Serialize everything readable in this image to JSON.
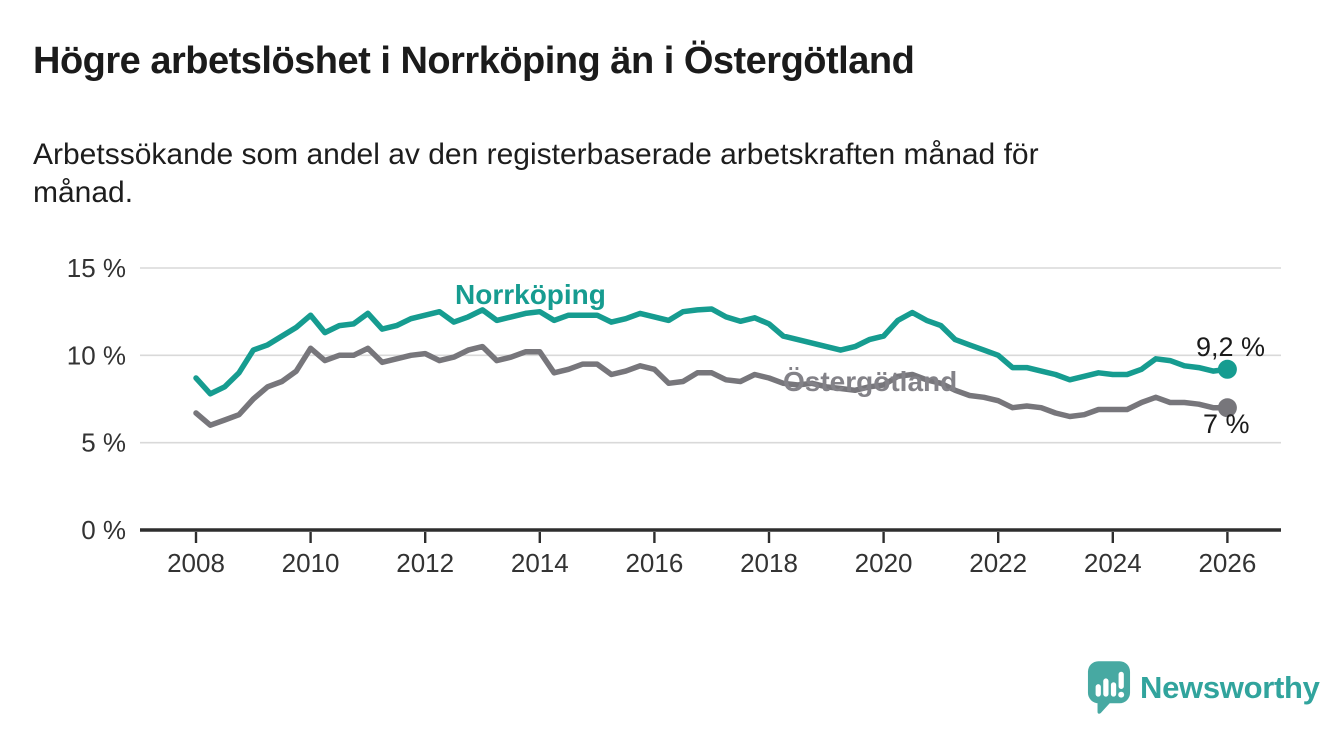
{
  "header": {
    "title": "Högre arbetslöshet i Norrköping än i Östergötland",
    "subtitle": "Arbetssökande som andel av den registerbaserade arbetskraften månad för månad.",
    "subtitle_lines": [
      "Arbetssökande som andel av den registerbaserade arbetskraften månad för",
      "månad."
    ]
  },
  "chart_data": {
    "type": "line",
    "title": "",
    "xlabel": "",
    "ylabel": "",
    "y_unit": "%",
    "ylim": [
      0,
      15
    ],
    "grid": true,
    "legend_position": "inline-labels",
    "y_ticks": [
      {
        "label": "0 %",
        "value": 0
      },
      {
        "label": "5 %",
        "value": 5
      },
      {
        "label": "10 %",
        "value": 10
      },
      {
        "label": "15 %",
        "value": 15
      }
    ],
    "x_ticks": [
      2008,
      2010,
      2012,
      2014,
      2016,
      2018,
      2020,
      2022,
      2024,
      2026
    ],
    "x_start": 2008.0,
    "x_step": 0.25,
    "x_end": 2026.0,
    "series": [
      {
        "name": "Norrköping",
        "color": "#169c90",
        "label_color": "#169c90",
        "end_label": "9,2 %",
        "end_value": 9.2,
        "values": [
          8.7,
          7.8,
          8.2,
          9.0,
          10.3,
          10.6,
          11.1,
          11.6,
          12.3,
          11.3,
          11.7,
          11.8,
          12.4,
          11.5,
          11.7,
          12.1,
          12.3,
          12.5,
          11.9,
          12.2,
          12.6,
          12.0,
          12.2,
          12.4,
          12.5,
          12.0,
          12.3,
          12.3,
          12.3,
          11.9,
          12.1,
          12.4,
          12.2,
          12.0,
          12.5,
          12.6,
          12.65,
          12.2,
          11.95,
          12.15,
          11.8,
          11.1,
          10.9,
          10.7,
          10.5,
          10.3,
          10.5,
          10.9,
          11.1,
          12.0,
          12.45,
          12.0,
          11.7,
          10.9,
          10.6,
          10.3,
          10.0,
          9.3,
          9.3,
          9.1,
          8.9,
          8.6,
          8.8,
          9.0,
          8.9,
          8.9,
          9.2,
          9.8,
          9.7,
          9.4,
          9.3,
          9.1,
          9.2
        ]
      },
      {
        "name": "Östergötland",
        "color": "#77767b",
        "label_color": "#838288",
        "end_label": "7 %",
        "end_value": 7.0,
        "values": [
          6.7,
          6.0,
          6.3,
          6.6,
          7.5,
          8.2,
          8.5,
          9.1,
          10.4,
          9.7,
          10.0,
          10.0,
          10.4,
          9.6,
          9.8,
          10.0,
          10.1,
          9.7,
          9.9,
          10.3,
          10.5,
          9.7,
          9.9,
          10.2,
          10.2,
          9.0,
          9.2,
          9.5,
          9.5,
          8.9,
          9.1,
          9.4,
          9.2,
          8.4,
          8.5,
          9.0,
          9.0,
          8.6,
          8.5,
          8.9,
          8.7,
          8.4,
          8.3,
          8.4,
          8.2,
          8.1,
          8.0,
          8.2,
          8.3,
          8.8,
          8.9,
          8.6,
          8.4,
          8.0,
          7.7,
          7.6,
          7.4,
          7.0,
          7.1,
          7.0,
          6.7,
          6.5,
          6.6,
          6.9,
          6.9,
          6.9,
          7.3,
          7.6,
          7.3,
          7.3,
          7.2,
          7.0,
          7.0
        ]
      }
    ]
  },
  "footer": {
    "brand": "Newsworthy"
  },
  "colors": {
    "norrkoping_line": "#169c90",
    "ostergotland_line": "#77767b",
    "grid": "#d9d9d9",
    "axis": "#2e2e2e",
    "text": "#1b1b1b",
    "logo_icon": "#47a9a2",
    "logo_text": "#31a49d"
  }
}
